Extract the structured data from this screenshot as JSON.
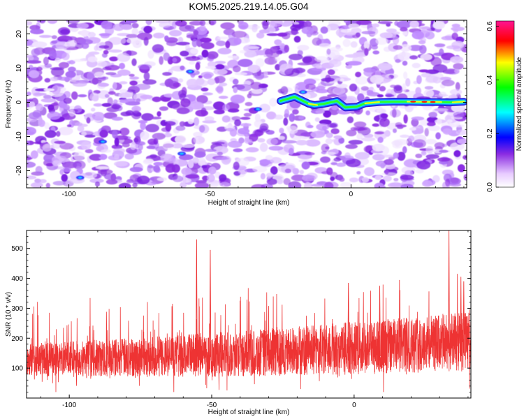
{
  "title": "KOM5.2025.219.14.05.G04",
  "chart_data": [
    {
      "type": "heatmap",
      "xlabel": "Height of straight line (km)",
      "ylabel": "Frequency (Hz)",
      "xlim": [
        -115,
        41
      ],
      "ylim": [
        -25,
        24
      ],
      "xticks": [
        -100,
        -50,
        0
      ],
      "xtick_labels": [
        "-100",
        "-50",
        "0"
      ],
      "yticks": [
        -20,
        -10,
        0,
        10,
        20
      ],
      "ytick_labels": [
        "-20",
        "-10",
        "0",
        "10",
        "20"
      ],
      "ridge": {
        "description": "coherent signal trace near 0 Hz",
        "points": [
          [
            -25,
            0.4
          ],
          [
            -20,
            1.6
          ],
          [
            -15,
            -0.4
          ],
          [
            -13,
            -0.8
          ],
          [
            -10,
            -0.5
          ],
          [
            -5,
            0.4
          ],
          [
            -2,
            -1.5
          ],
          [
            2,
            -1.3
          ],
          [
            5,
            -0.3
          ],
          [
            10,
            0.1
          ],
          [
            15,
            0.2
          ],
          [
            20,
            0.2
          ],
          [
            25,
            0.1
          ],
          [
            30,
            0.1
          ],
          [
            35,
            0.0
          ],
          [
            40,
            0.2
          ]
        ]
      },
      "colorbar": {
        "label": "Normalized spectral amplitude",
        "range": [
          0.0,
          0.62
        ],
        "ticks": [
          0.0,
          0.2,
          0.4,
          0.6
        ],
        "tick_labels": [
          "0.0",
          "0.2",
          "0.4",
          "0.6"
        ]
      }
    },
    {
      "type": "line",
      "xlabel": "Height of straight line (km)",
      "ylabel": "SNR (10 * v/v)",
      "xlim": [
        -115,
        41
      ],
      "ylim": [
        0,
        560
      ],
      "xticks": [
        -100,
        -50,
        0
      ],
      "xtick_labels": [
        "-100",
        "-50",
        "0"
      ],
      "yticks": [
        100,
        200,
        300,
        400,
        500
      ],
      "ytick_labels": [
        "100",
        "200",
        "300",
        "400",
        "500"
      ],
      "color": "#ee3333",
      "series_summary": {
        "baseline_left": 130,
        "baseline_right": 190,
        "noise_range": [
          20,
          330
        ],
        "peaks": [
          [
            -55.3,
            530
          ],
          [
            -50.5,
            495
          ],
          [
            33.3,
            560
          ],
          [
            37.5,
            405
          ],
          [
            38.5,
            390
          ],
          [
            -2,
            385
          ],
          [
            9,
            375
          ]
        ]
      }
    }
  ]
}
